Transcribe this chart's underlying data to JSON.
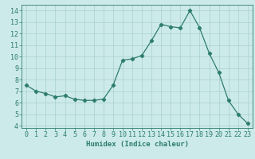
{
  "x": [
    0,
    1,
    2,
    3,
    4,
    5,
    6,
    7,
    8,
    9,
    10,
    11,
    12,
    13,
    14,
    15,
    16,
    17,
    18,
    19,
    20,
    21,
    22,
    23
  ],
  "y": [
    7.5,
    7.0,
    6.8,
    6.5,
    6.6,
    6.3,
    6.2,
    6.2,
    6.3,
    7.5,
    9.7,
    9.8,
    10.1,
    11.4,
    12.8,
    12.6,
    12.5,
    14.0,
    12.5,
    10.3,
    8.6,
    6.2,
    5.0,
    4.2
  ],
  "xlabel": "Humidex (Indice chaleur)",
  "xlim": [
    -0.5,
    23.5
  ],
  "ylim": [
    3.8,
    14.5
  ],
  "yticks": [
    4,
    5,
    6,
    7,
    8,
    9,
    10,
    11,
    12,
    13,
    14
  ],
  "xticks": [
    0,
    1,
    2,
    3,
    4,
    5,
    6,
    7,
    8,
    9,
    10,
    11,
    12,
    13,
    14,
    15,
    16,
    17,
    18,
    19,
    20,
    21,
    22,
    23
  ],
  "line_color": "#2e7d6e",
  "marker": "D",
  "marker_size": 2.2,
  "bg_color": "#cceaea",
  "grid_color": "#aacfcf",
  "label_fontsize": 6.5,
  "tick_fontsize": 6.0
}
